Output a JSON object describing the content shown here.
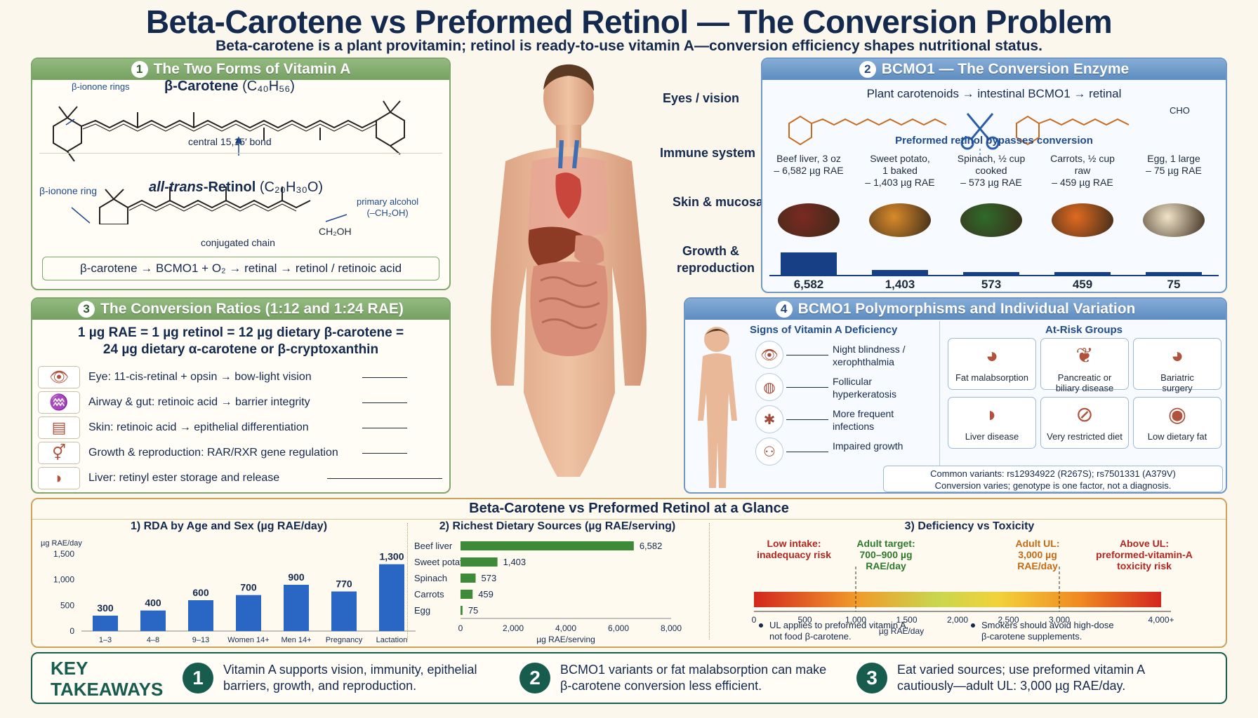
{
  "title": "Beta-Carotene vs Preformed Retinol — The Conversion Problem",
  "subtitle": "Beta-carotene is a plant provitamin; retinol is ready-to-use vitamin A—conversion efficiency shapes nutritional status.",
  "panel1": {
    "num": "1",
    "title": "The Two Forms of Vitamin A",
    "beta_ionone_rings": "β-ionone rings",
    "bc_name": "β-Carotene",
    "bc_formula": "(C₄₀H₅₆)",
    "central_bond": "central 15,15′ bond",
    "beta_ionone_ring": "β-ionone ring",
    "retinol_prefix": "all-trans",
    "retinol_name": "-Retinol",
    "retinol_formula": "(C₂₀H₃₀O)",
    "primary_alcohol": "primary alcohol",
    "ch2oh_paren": "(–CH₂OH)",
    "ch2oh": "CH₂OH",
    "conjugated": "conjugated chain",
    "pathway": "β-carotene → BCMO1 + O₂ → retinal → retinol / retinoic acid"
  },
  "panel2": {
    "num": "2",
    "title": "BCMO1 — The Conversion Enzyme",
    "flow": "Plant carotenoids → intestinal BCMO1 → retinal",
    "cho": "CHO",
    "bypass": "Preformed retinol bypasses conversion",
    "foods": [
      {
        "label": "Beef liver, 3 oz\n– 6,582 µg RAE",
        "value": "6,582",
        "amount": 6582
      },
      {
        "label": "Sweet potato,\n1 baked\n– 1,403 µg RAE",
        "value": "1,403",
        "amount": 1403
      },
      {
        "label": "Spinach, ½ cup\ncooked\n– 573 µg RAE",
        "value": "573",
        "amount": 573
      },
      {
        "label": "Carrots, ½ cup\nraw\n– 459 µg RAE",
        "value": "459",
        "amount": 459
      },
      {
        "label": "Egg, 1 large\n– 75 µg RAE",
        "value": "75",
        "amount": 75
      }
    ]
  },
  "panel3": {
    "num": "3",
    "title": "The Conversion Ratios (1:12 and 1:24 RAE)",
    "equation_line1": "1 µg RAE = 1 µg retinol = 12 µg dietary β-carotene =",
    "equation_line2": "24 µg dietary α-carotene or β-cryptoxanthin",
    "rows": [
      {
        "icon": "eye-icon",
        "text": "Eye: 11-cis-retinal + opsin → bow-light vision"
      },
      {
        "icon": "gut-icon",
        "text": "Airway & gut: retinoic acid → barrier integrity"
      },
      {
        "icon": "skin-icon",
        "text": "Skin: retinoic acid → epithelial differentiation"
      },
      {
        "icon": "gender-icon",
        "text": "Growth & reproduction: RAR/RXR gene regulation"
      },
      {
        "icon": "liver-icon",
        "text": "Liver: retinyl ester storage and release"
      }
    ]
  },
  "body_labels": {
    "eyes": "Eyes / vision",
    "immune": "Immune system",
    "skin": "Skin & mucosa",
    "growth1": "Growth &",
    "growth2": "reproduction"
  },
  "panel4": {
    "num": "4",
    "title": "BCMO1 Polymorphisms and Individual Variation",
    "signs_title": "Signs of Vitamin A Deficiency",
    "signs": [
      {
        "l1": "Night blindness /",
        "l2": "xerophthalmia"
      },
      {
        "l1": "Follicular",
        "l2": "hyperkeratosis"
      },
      {
        "l1": "More frequent",
        "l2": "infections"
      },
      {
        "l1": "Impaired growth",
        "l2": ""
      }
    ],
    "risk_title": "At-Risk Groups",
    "risks": [
      {
        "label": "Fat malabsorption",
        "icon": "stomach-icon"
      },
      {
        "label": "Pancreatic or\nbiliary disease",
        "icon": "pancreas-icon"
      },
      {
        "label": "Bariatric\nsurgery",
        "icon": "stomach-icon"
      },
      {
        "label": "Liver disease",
        "icon": "liver-icon"
      },
      {
        "label": "Very restricted diet",
        "icon": "no-food-icon"
      },
      {
        "label": "Low dietary fat",
        "icon": "avocado-oil-icon"
      }
    ],
    "variants_l1": "Common variants: rs12934922 (R267S); rs7501331 (A379V)",
    "variants_l2": "Conversion varies; genotype is one factor, not a diagnosis."
  },
  "glance": {
    "title": "Beta-Carotene vs Preformed Retinol at a Glance",
    "rda": {
      "title": "1) RDA by Age and Sex (µg RAE/day)",
      "ylabel": "µg RAE/day",
      "chart_data": {
        "type": "bar",
        "categories": [
          "1–3",
          "4–8",
          "9–13",
          "Women 14+",
          "Men 14+",
          "Pregnancy",
          "Lactation"
        ],
        "values": [
          300,
          400,
          600,
          700,
          900,
          770,
          1300
        ],
        "value_labels": [
          "300",
          "400",
          "600",
          "700",
          "900",
          "770",
          "1,300"
        ],
        "yticks": [
          {
            "v": 0,
            "label": "0"
          },
          {
            "v": 500,
            "label": "500"
          },
          {
            "v": 1000,
            "label": "1,000"
          },
          {
            "v": 1500,
            "label": "1,500"
          }
        ],
        "ylim": [
          0,
          1500
        ],
        "color": "#2a67c4"
      }
    },
    "sources": {
      "title": "2) Richest Dietary Sources (µg RAE/serving)",
      "xlabel": "µg RAE/serving",
      "chart_data": {
        "type": "bar",
        "orientation": "horizontal",
        "categories": [
          "Beef liver",
          "Sweet potato",
          "Spinach",
          "Carrots",
          "Egg"
        ],
        "values": [
          6582,
          1403,
          573,
          459,
          75
        ],
        "value_labels": [
          "6,582",
          "1,403",
          "573",
          "459",
          "75"
        ],
        "xticks": [
          {
            "v": 0,
            "label": "0"
          },
          {
            "v": 2000,
            "label": "2,000"
          },
          {
            "v": 4000,
            "label": "4,000"
          },
          {
            "v": 6000,
            "label": "6,000"
          },
          {
            "v": 8000,
            "label": "8,000"
          }
        ],
        "xlim": [
          0,
          8000
        ],
        "color": "#3d8a38"
      }
    },
    "toxicity": {
      "title": "3) Deficiency vs Toxicity",
      "low_l1": "Low intake:",
      "low_l2": "inadequacy risk",
      "adult_l1": "Adult target:",
      "adult_l2": "700–900 µg",
      "adult_l3": "RAE/day",
      "ul_l1": "Adult UL:",
      "ul_l2": "3,000 µg",
      "ul_l3": "RAE/day",
      "above_l1": "Above UL:",
      "above_l2": "preformed-vitamin-A",
      "above_l3": "toxicity risk",
      "axis_label": "µg RAE/day",
      "ticks": [
        {
          "v": 0,
          "label": "0"
        },
        {
          "v": 500,
          "label": "500"
        },
        {
          "v": 1000,
          "label": "1,000"
        },
        {
          "v": 1500,
          "label": "1,500"
        },
        {
          "v": 2000,
          "label": "2,000"
        },
        {
          "v": 2500,
          "label": "2,500"
        },
        {
          "v": 3000,
          "label": "3,000"
        },
        {
          "v": 4000,
          "label": "4,000+"
        }
      ],
      "note1_l1": "UL applies to preformed vitamin A,",
      "note1_l2": "not food β-carotene.",
      "note2_l1": "Smokers should avoid high-dose",
      "note2_l2": "β-carotene supplements."
    }
  },
  "takeaways": {
    "label1": "KEY",
    "label2": "TAKEAWAYS",
    "items": [
      {
        "num": "1",
        "l1": "Vitamin A supports vision, immunity, epithelial",
        "l2": "barriers, growth, and reproduction."
      },
      {
        "num": "2",
        "l1": "BCMO1 variants or fat malabsorption can make",
        "l2": "β-carotene conversion less efficient."
      },
      {
        "num": "3",
        "l1": "Eat varied sources; use preformed vitamin A",
        "l2": "cautiously—adult UL: 3,000 µg RAE/day."
      }
    ]
  }
}
